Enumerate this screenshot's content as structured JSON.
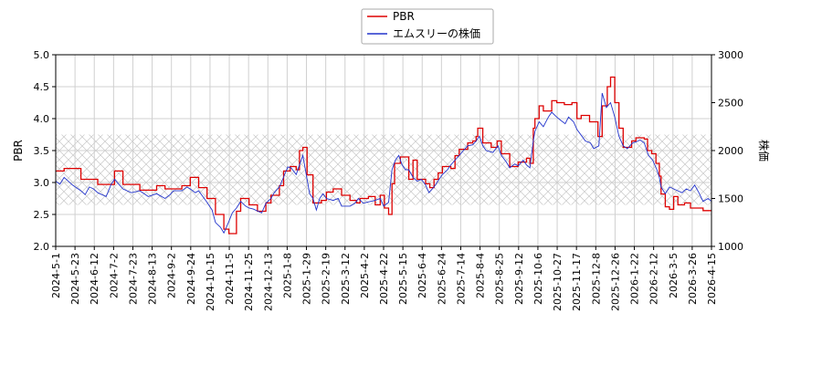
{
  "chart_data": {
    "type": "line",
    "ylabel_left": "PBR",
    "ylabel_right": "株価",
    "ylim_left": [
      2.0,
      5.0
    ],
    "ylim_right": [
      1000,
      3000
    ],
    "yticks_left": [
      "2.0",
      "2.5",
      "3.0",
      "3.5",
      "4.0",
      "4.5",
      "5.0"
    ],
    "yticks_right": [
      "1000",
      "1500",
      "2000",
      "2500",
      "3000"
    ],
    "x_ticks": [
      "2024-5-1",
      "2024-5-23",
      "2024-6-12",
      "2024-7-2",
      "2024-7-23",
      "2024-8-13",
      "2024-9-2",
      "2024-9-24",
      "2024-10-15",
      "2024-11-5",
      "2024-11-25",
      "2024-12-13",
      "2025-1-8",
      "2025-1-29",
      "2025-2-19",
      "2025-3-12",
      "2025-4-2",
      "2025-4-22",
      "2025-5-15",
      "2025-6-4",
      "2025-6-24",
      "2025-7-14",
      "2025-8-4",
      "2025-8-25",
      "2025-9-12",
      "2025-10-6",
      "2025-10-27",
      "2025-11-17",
      "2025-12-8",
      "2025-12-26",
      "2026-1-22",
      "2026-2-12",
      "2026-3-5",
      "2026-3-26",
      "2026-4-15"
    ],
    "grid": true,
    "legend_position": "top-center",
    "hatch_band_pbr": [
      2.65,
      3.75
    ],
    "series": [
      {
        "name": "PBR",
        "axis": "left",
        "color": "#dd0000",
        "step": true,
        "points": [
          [
            0,
            3.18
          ],
          [
            1,
            3.22
          ],
          [
            3,
            3.05
          ],
          [
            5,
            2.97
          ],
          [
            7,
            3.18
          ],
          [
            8,
            2.97
          ],
          [
            10,
            2.88
          ],
          [
            12,
            2.95
          ],
          [
            13,
            2.9
          ],
          [
            15,
            2.95
          ],
          [
            16,
            3.08
          ],
          [
            17,
            2.92
          ],
          [
            18,
            2.75
          ],
          [
            19,
            2.5
          ],
          [
            20,
            2.27
          ],
          [
            20.6,
            2.2
          ],
          [
            21.5,
            2.55
          ],
          [
            22,
            2.75
          ],
          [
            23,
            2.65
          ],
          [
            24,
            2.55
          ],
          [
            25,
            2.68
          ],
          [
            25.6,
            2.8
          ],
          [
            26.6,
            2.95
          ],
          [
            27.1,
            3.18
          ],
          [
            27.9,
            3.25
          ],
          [
            28.6,
            3.2
          ],
          [
            29,
            3.5
          ],
          [
            29.4,
            3.55
          ],
          [
            29.9,
            3.12
          ],
          [
            30.6,
            2.68
          ],
          [
            31.6,
            2.72
          ],
          [
            32.2,
            2.85
          ],
          [
            33,
            2.9
          ],
          [
            34,
            2.8
          ],
          [
            35,
            2.72
          ],
          [
            35.8,
            2.68
          ],
          [
            36.2,
            2.75
          ],
          [
            37.2,
            2.78
          ],
          [
            38,
            2.65
          ],
          [
            38.6,
            2.8
          ],
          [
            39.1,
            2.6
          ],
          [
            39.6,
            2.5
          ],
          [
            40,
            2.98
          ],
          [
            40.3,
            3.3
          ],
          [
            41,
            3.4
          ],
          [
            42,
            3.05
          ],
          [
            42.5,
            3.35
          ],
          [
            43,
            3.05
          ],
          [
            44,
            2.98
          ],
          [
            44.5,
            2.92
          ],
          [
            45,
            3.05
          ],
          [
            45.5,
            3.15
          ],
          [
            46,
            3.25
          ],
          [
            47,
            3.22
          ],
          [
            47.5,
            3.42
          ],
          [
            48,
            3.52
          ],
          [
            49,
            3.62
          ],
          [
            49.6,
            3.65
          ],
          [
            50,
            3.72
          ],
          [
            50.2,
            3.85
          ],
          [
            50.8,
            3.62
          ],
          [
            51.8,
            3.55
          ],
          [
            52.5,
            3.65
          ],
          [
            53,
            3.45
          ],
          [
            54,
            3.25
          ],
          [
            55,
            3.32
          ],
          [
            56,
            3.38
          ],
          [
            56.4,
            3.3
          ],
          [
            56.8,
            3.85
          ],
          [
            57,
            4.0
          ],
          [
            57.5,
            4.2
          ],
          [
            58,
            4.12
          ],
          [
            59,
            4.28
          ],
          [
            59.6,
            4.25
          ],
          [
            60.5,
            4.22
          ],
          [
            61.4,
            4.25
          ],
          [
            62,
            4.0
          ],
          [
            62.5,
            4.05
          ],
          [
            63.5,
            3.95
          ],
          [
            64.5,
            3.72
          ],
          [
            65,
            4.2
          ],
          [
            65.6,
            4.5
          ],
          [
            66,
            4.65
          ],
          [
            66.5,
            4.25
          ],
          [
            67,
            3.85
          ],
          [
            67.5,
            3.55
          ],
          [
            68.5,
            3.65
          ],
          [
            69,
            3.7
          ],
          [
            70,
            3.68
          ],
          [
            70.4,
            3.5
          ],
          [
            70.9,
            3.45
          ],
          [
            71.4,
            3.3
          ],
          [
            71.8,
            3.1
          ],
          [
            72,
            2.82
          ],
          [
            72.5,
            2.62
          ],
          [
            73,
            2.58
          ],
          [
            73.5,
            2.78
          ],
          [
            74,
            2.65
          ],
          [
            74.8,
            2.68
          ],
          [
            75.5,
            2.6
          ],
          [
            76.5,
            2.6
          ],
          [
            77,
            2.56
          ],
          [
            78,
            2.56
          ]
        ]
      },
      {
        "name": "エムスリーの株価",
        "axis": "right",
        "color": "#2233cc",
        "step": false,
        "points": [
          [
            0,
            1680
          ],
          [
            0.5,
            1650
          ],
          [
            1,
            1720
          ],
          [
            1.5,
            1680
          ],
          [
            2,
            1640
          ],
          [
            3,
            1580
          ],
          [
            3.5,
            1540
          ],
          [
            4,
            1620
          ],
          [
            4.5,
            1600
          ],
          [
            5,
            1560
          ],
          [
            6,
            1520
          ],
          [
            6.6,
            1650
          ],
          [
            7,
            1700
          ],
          [
            7.5,
            1650
          ],
          [
            8,
            1600
          ],
          [
            9,
            1560
          ],
          [
            10,
            1580
          ],
          [
            11,
            1520
          ],
          [
            12,
            1550
          ],
          [
            13,
            1500
          ],
          [
            13.6,
            1540
          ],
          [
            14,
            1580
          ],
          [
            15,
            1580
          ],
          [
            15.6,
            1620
          ],
          [
            16,
            1600
          ],
          [
            16.6,
            1560
          ],
          [
            17,
            1580
          ],
          [
            18,
            1460
          ],
          [
            18.6,
            1380
          ],
          [
            19,
            1250
          ],
          [
            19.6,
            1200
          ],
          [
            20,
            1140
          ],
          [
            20.6,
            1260
          ],
          [
            21,
            1350
          ],
          [
            21.5,
            1400
          ],
          [
            22,
            1470
          ],
          [
            22.6,
            1420
          ],
          [
            23,
            1400
          ],
          [
            23.5,
            1390
          ],
          [
            24,
            1370
          ],
          [
            24.5,
            1350
          ],
          [
            25,
            1450
          ],
          [
            25.6,
            1500
          ],
          [
            26,
            1560
          ],
          [
            26.6,
            1620
          ],
          [
            27,
            1700
          ],
          [
            27.6,
            1830
          ],
          [
            28,
            1820
          ],
          [
            28.6,
            1750
          ],
          [
            29,
            1850
          ],
          [
            29.4,
            1950
          ],
          [
            29.8,
            1750
          ],
          [
            30.2,
            1550
          ],
          [
            30.6,
            1500
          ],
          [
            31,
            1380
          ],
          [
            31.4,
            1500
          ],
          [
            31.8,
            1550
          ],
          [
            32.2,
            1500
          ],
          [
            33,
            1480
          ],
          [
            33.6,
            1500
          ],
          [
            34,
            1420
          ],
          [
            35,
            1420
          ],
          [
            35.6,
            1450
          ],
          [
            36,
            1500
          ],
          [
            36.6,
            1450
          ],
          [
            37,
            1460
          ],
          [
            38,
            1480
          ],
          [
            38.6,
            1500
          ],
          [
            39,
            1420
          ],
          [
            39.6,
            1460
          ],
          [
            40,
            1800
          ],
          [
            40.4,
            1900
          ],
          [
            40.8,
            1950
          ],
          [
            41.2,
            1850
          ],
          [
            41.6,
            1800
          ],
          [
            42,
            1800
          ],
          [
            42.5,
            1720
          ],
          [
            43,
            1680
          ],
          [
            43.5,
            1700
          ],
          [
            44,
            1640
          ],
          [
            44.4,
            1560
          ],
          [
            45,
            1620
          ],
          [
            45.6,
            1700
          ],
          [
            46,
            1750
          ],
          [
            46.6,
            1800
          ],
          [
            47,
            1850
          ],
          [
            47.5,
            1900
          ],
          [
            48,
            1950
          ],
          [
            48.5,
            2000
          ],
          [
            49,
            2050
          ],
          [
            49.6,
            2060
          ],
          [
            50,
            2100
          ],
          [
            50.4,
            2150
          ],
          [
            50.8,
            2050
          ],
          [
            51.2,
            2000
          ],
          [
            52,
            1980
          ],
          [
            52.6,
            2050
          ],
          [
            53,
            1950
          ],
          [
            53.6,
            1880
          ],
          [
            54,
            1820
          ],
          [
            54.6,
            1860
          ],
          [
            55,
            1840
          ],
          [
            55.6,
            1900
          ],
          [
            56,
            1850
          ],
          [
            56.4,
            1820
          ],
          [
            56.8,
            2100
          ],
          [
            57,
            2200
          ],
          [
            57.5,
            2300
          ],
          [
            58,
            2250
          ],
          [
            58.6,
            2350
          ],
          [
            59,
            2400
          ],
          [
            59.6,
            2350
          ],
          [
            60,
            2320
          ],
          [
            60.6,
            2280
          ],
          [
            61,
            2350
          ],
          [
            61.6,
            2300
          ],
          [
            62,
            2220
          ],
          [
            62.6,
            2150
          ],
          [
            63,
            2100
          ],
          [
            63.6,
            2080
          ],
          [
            64,
            2020
          ],
          [
            64.6,
            2050
          ],
          [
            65,
            2600
          ],
          [
            65.5,
            2450
          ],
          [
            66,
            2500
          ],
          [
            66.5,
            2350
          ],
          [
            67,
            2150
          ],
          [
            67.5,
            2050
          ],
          [
            68,
            2020
          ],
          [
            68.6,
            2080
          ],
          [
            69,
            2090
          ],
          [
            69.5,
            2110
          ],
          [
            70,
            2080
          ],
          [
            70.5,
            1950
          ],
          [
            71,
            1900
          ],
          [
            71.5,
            1800
          ],
          [
            71.8,
            1720
          ],
          [
            72,
            1620
          ],
          [
            72.5,
            1550
          ],
          [
            73,
            1620
          ],
          [
            73.5,
            1600
          ],
          [
            74,
            1580
          ],
          [
            74.5,
            1560
          ],
          [
            75,
            1600
          ],
          [
            75.5,
            1580
          ],
          [
            76,
            1640
          ],
          [
            76.5,
            1560
          ],
          [
            77,
            1470
          ],
          [
            77.6,
            1500
          ],
          [
            78,
            1470
          ]
        ]
      }
    ]
  },
  "legend": {
    "items": [
      {
        "label": "PBR",
        "color": "#dd0000"
      },
      {
        "label": "エムスリーの株価",
        "color": "#2233cc"
      }
    ]
  }
}
